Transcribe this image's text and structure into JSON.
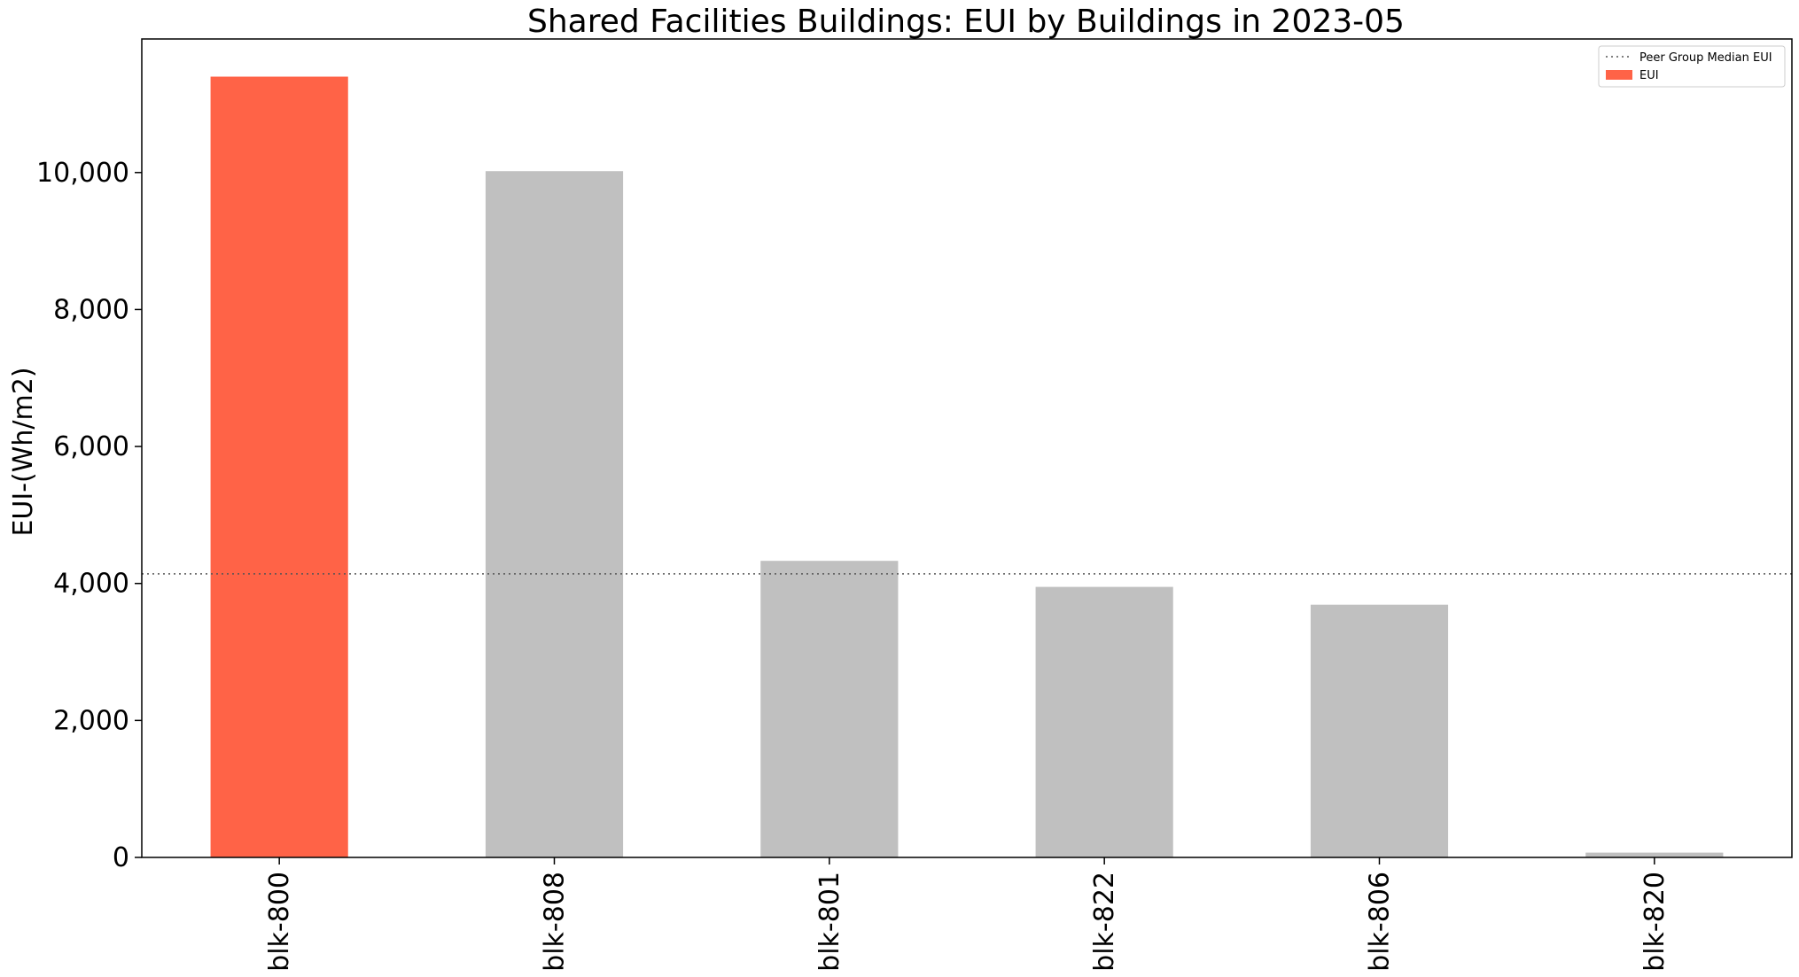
{
  "chart_data": {
    "type": "bar",
    "title": "Shared Facilities Buildings: EUI by Buildings in 2023-05",
    "xlabel": "",
    "ylabel": "EUI-(Wh/m2)",
    "categories": [
      "blk-800",
      "blk-808",
      "blk-801",
      "blk-822",
      "blk-806",
      "blk-820"
    ],
    "series": [
      {
        "name": "EUI",
        "values": [
          11400,
          10020,
          4330,
          3950,
          3690,
          70
        ]
      }
    ],
    "highlight_index": 0,
    "median_line": {
      "name": "Peer Group Median EUI",
      "value": 4140
    },
    "ylim": [
      0,
      11950
    ],
    "yticks": [
      0,
      2000,
      4000,
      6000,
      8000,
      10000
    ],
    "ytick_labels": [
      "0",
      "2,000",
      "4,000",
      "6,000",
      "8,000",
      "10,000"
    ],
    "colors": {
      "highlight": "#ff6347",
      "default": "#c0c0c0",
      "median": "#555555"
    },
    "grid": false,
    "legend_position": "top-right"
  }
}
